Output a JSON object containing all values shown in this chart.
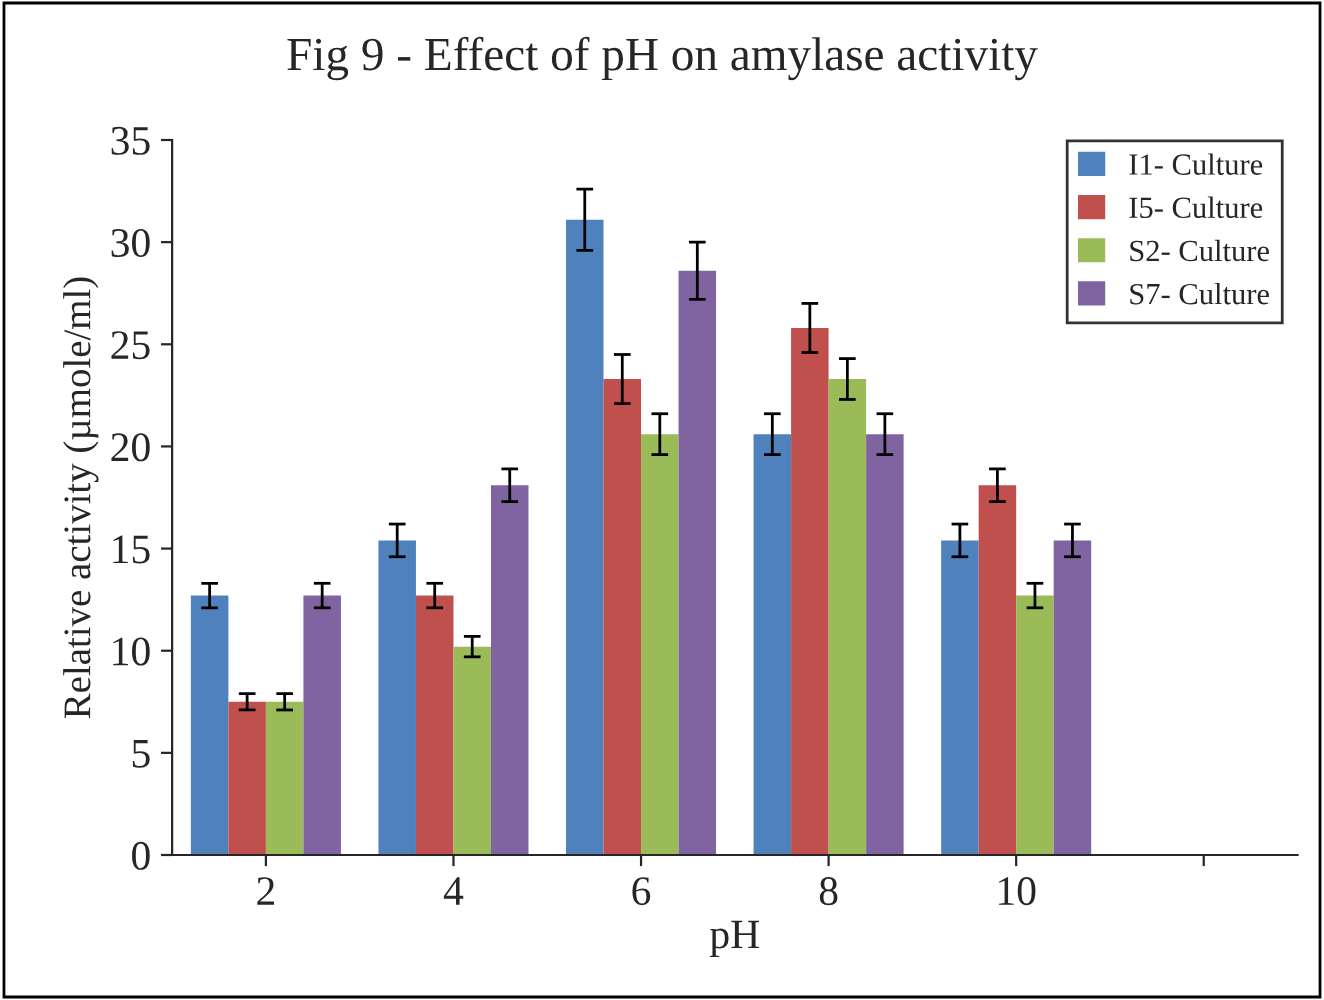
{
  "chart_data": {
    "type": "bar",
    "title": "Fig 9 - Effect of pH on amylase activity",
    "xlabel": "pH",
    "ylabel": "Relative activity (µmole/ml)",
    "categories": [
      "2",
      "4",
      "6",
      "8",
      "10",
      null
    ],
    "series": [
      {
        "name": "I1- Culture",
        "color": "#4f81bd",
        "values": [
          12.7,
          15.4,
          31.1,
          20.6,
          15.4,
          null
        ],
        "errors": [
          0.6,
          0.8,
          1.5,
          1.0,
          0.8,
          null
        ]
      },
      {
        "name": "I5- Culture",
        "color": "#c0504d",
        "values": [
          7.5,
          12.7,
          23.3,
          25.8,
          18.1,
          null
        ],
        "errors": [
          0.4,
          0.6,
          1.2,
          1.2,
          0.8,
          null
        ]
      },
      {
        "name": "S2- Culture",
        "color": "#9bbb59",
        "values": [
          7.5,
          10.2,
          20.6,
          23.3,
          12.7,
          null
        ],
        "errors": [
          0.4,
          0.5,
          1.0,
          1.0,
          0.6,
          null
        ]
      },
      {
        "name": "S7- Culture",
        "color": "#8064a2",
        "values": [
          12.7,
          18.1,
          28.6,
          20.6,
          15.4,
          null
        ],
        "errors": [
          0.6,
          0.8,
          1.4,
          1.0,
          0.8,
          null
        ]
      }
    ],
    "ylim": [
      0,
      35
    ],
    "yticks": [
      0,
      5,
      10,
      15,
      20,
      25,
      30,
      35
    ],
    "grid": false,
    "legend": "top right"
  }
}
